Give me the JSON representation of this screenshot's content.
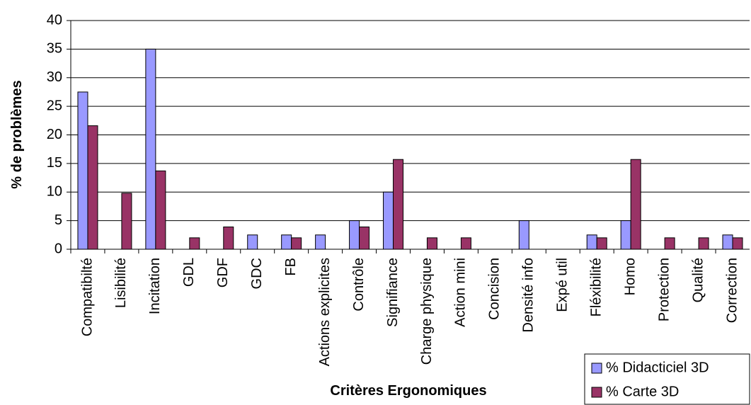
{
  "chart_data": {
    "type": "bar",
    "y_label": "% de problèmes",
    "x_label": "Critères Ergonomiques",
    "categories": [
      "Compatibilté",
      "Lisibilité",
      "Incitation",
      "GDL",
      "GDF",
      "GDC",
      "FB",
      "Actions explicites",
      "Contrôle",
      "Signifiance",
      "Charge physique",
      "Action mini",
      "Concision",
      "Densité info",
      "Expé util",
      "Fléxibilité",
      "Homo",
      "Protection",
      "Qualité",
      "Correction"
    ],
    "series": [
      {
        "name": "% Didacticiel 3D",
        "color": "#9999ff",
        "values": [
          27.5,
          0,
          35,
          0,
          0,
          2.5,
          2.5,
          2.5,
          5,
          10,
          0,
          0,
          0,
          5,
          0,
          2.5,
          5,
          0,
          0,
          2.5
        ]
      },
      {
        "name": "% Carte 3D",
        "color": "#993366",
        "values": [
          21.6,
          9.8,
          13.7,
          2,
          3.9,
          0,
          2,
          0,
          3.9,
          15.7,
          2,
          2,
          0,
          0,
          0,
          2,
          15.7,
          2,
          2,
          2
        ]
      }
    ],
    "ylim": [
      0,
      40
    ],
    "yticks": [
      0,
      5,
      10,
      15,
      20,
      25,
      30,
      35,
      40
    ],
    "grid": true
  }
}
